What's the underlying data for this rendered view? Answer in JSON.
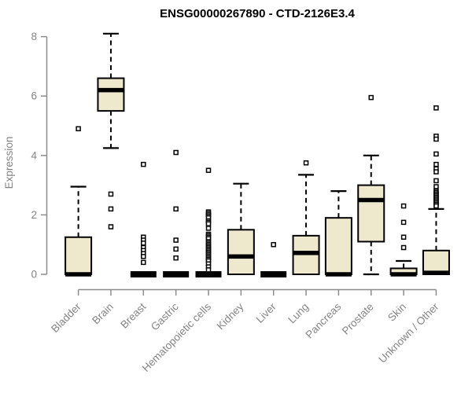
{
  "title": "ENSG00000267890 - CTD-2126E3.4",
  "y_axis": {
    "label": "Expression",
    "tick_labels": [
      "0",
      "2",
      "4",
      "6",
      "8"
    ]
  },
  "colors": {
    "box_fill": "#EEE8CD",
    "box_border": "#000000",
    "median": "#000000",
    "whisker": "#000000",
    "outlier_stroke": "#000000",
    "outlier_fill": "#ffffff",
    "axis_line": "#8c8c8c",
    "tick_label": "#848484",
    "title_color": "#000000",
    "background": "#ffffff"
  },
  "chart_data": {
    "type": "boxplot",
    "title": "ENSG00000267890 - CTD-2126E3.4",
    "xlabel": "",
    "ylabel": "Expression",
    "ylim": [
      0,
      8
    ],
    "yticks": [
      0,
      2,
      4,
      6,
      8
    ],
    "grid": false,
    "legend": "none",
    "categories": [
      "Bladder",
      "Brain",
      "Breast",
      "Gastric",
      "Hematopoietic cells",
      "Kidney",
      "Liver",
      "Lung",
      "Pancreas",
      "Prostate",
      "Skin",
      "Unknown / Other"
    ],
    "series": [
      {
        "name": "Bladder",
        "whisker_low": 0,
        "q1": 0,
        "median": 0,
        "q3": 1.25,
        "whisker_high": 2.95,
        "outliers": [
          4.9
        ]
      },
      {
        "name": "Brain",
        "whisker_low": 4.25,
        "q1": 5.5,
        "median": 6.2,
        "q3": 6.6,
        "whisker_high": 8.1,
        "outliers": [
          2.7,
          2.2,
          1.6
        ]
      },
      {
        "name": "Breast",
        "whisker_low": 0,
        "q1": 0,
        "median": 0,
        "q3": 0,
        "whisker_high": 0,
        "outliers": [
          3.7,
          1.25,
          1.15,
          1.05,
          0.9,
          0.8,
          0.7,
          0.6,
          0.4
        ]
      },
      {
        "name": "Gastric",
        "whisker_low": 0,
        "q1": 0,
        "median": 0,
        "q3": 0,
        "whisker_high": 0,
        "outliers": [
          4.1,
          2.2,
          1.15,
          0.85,
          0.55
        ]
      },
      {
        "name": "Hematopoietic cells",
        "whisker_low": 0,
        "q1": 0,
        "median": 0,
        "q3": 0,
        "whisker_high": 0,
        "outliers": [
          3.5,
          2.1,
          2.05,
          2.0,
          1.95,
          1.9,
          1.8,
          1.75,
          1.7,
          1.55,
          1.35,
          1.3,
          1.25,
          1.2,
          1.1,
          1.05,
          1.0,
          0.95,
          0.9,
          0.85,
          0.8,
          0.75,
          0.7,
          0.65,
          0.6,
          0.55,
          0.5,
          0.45,
          0.35,
          0.25,
          0.15
        ]
      },
      {
        "name": "Kidney",
        "whisker_low": 0,
        "q1": 0,
        "median": 0.6,
        "q3": 1.5,
        "whisker_high": 3.05,
        "outliers": []
      },
      {
        "name": "Liver",
        "whisker_low": 0,
        "q1": 0,
        "median": 0,
        "q3": 0,
        "whisker_high": 0,
        "outliers": [
          1.0
        ]
      },
      {
        "name": "Lung",
        "whisker_low": 0,
        "q1": 0,
        "median": 0.72,
        "q3": 1.3,
        "whisker_high": 3.35,
        "outliers": [
          3.75
        ]
      },
      {
        "name": "Pancreas",
        "whisker_low": 0,
        "q1": 0,
        "median": 0,
        "q3": 1.9,
        "whisker_high": 2.8,
        "outliers": []
      },
      {
        "name": "Prostate",
        "whisker_low": 0,
        "q1": 1.1,
        "median": 2.5,
        "q3": 3.0,
        "whisker_high": 4.0,
        "outliers": [
          5.95
        ]
      },
      {
        "name": "Skin",
        "whisker_low": 0,
        "q1": 0,
        "median": 0,
        "q3": 0.2,
        "whisker_high": 0.45,
        "outliers": [
          2.3,
          1.75,
          1.25,
          0.9
        ]
      },
      {
        "name": "Unknown / Other",
        "whisker_low": 0,
        "q1": 0,
        "median": 0.05,
        "q3": 0.8,
        "whisker_high": 2.2,
        "outliers": [
          5.6,
          4.65,
          4.55,
          4.05,
          3.7,
          3.55,
          3.45,
          3.15,
          2.95,
          2.8,
          2.75,
          2.7,
          2.65,
          2.6,
          2.55,
          2.5,
          2.45,
          2.4,
          2.35,
          2.3
        ]
      }
    ]
  }
}
